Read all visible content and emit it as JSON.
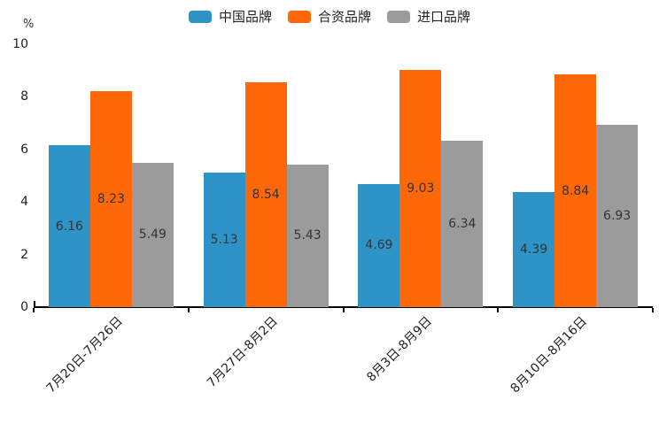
{
  "chart_data": {
    "type": "bar",
    "title": "",
    "unit_label": "%",
    "categories": [
      "7月20日-7月26日",
      "7月27日-8月2日",
      "8月3日-8月9日",
      "8月10日-8月16日"
    ],
    "series": [
      {
        "name": "中国品牌",
        "color": "#2E94C8",
        "values": [
          6.16,
          5.13,
          4.69,
          4.39
        ]
      },
      {
        "name": "合资品牌",
        "color": "#FF6808",
        "values": [
          8.23,
          8.54,
          9.03,
          8.84
        ]
      },
      {
        "name": "进口品牌",
        "color": "#9B9B9B",
        "values": [
          5.49,
          5.43,
          6.34,
          6.93
        ]
      }
    ],
    "ylim": [
      0,
      10
    ],
    "yticks": [
      0,
      2,
      4,
      6,
      8,
      10
    ],
    "legend_position": "top",
    "grid": false,
    "value_labels": true,
    "value_label_format": "0.00",
    "text_color": "#333333",
    "axis_color": "#000000",
    "background_color": "#ffffff"
  }
}
